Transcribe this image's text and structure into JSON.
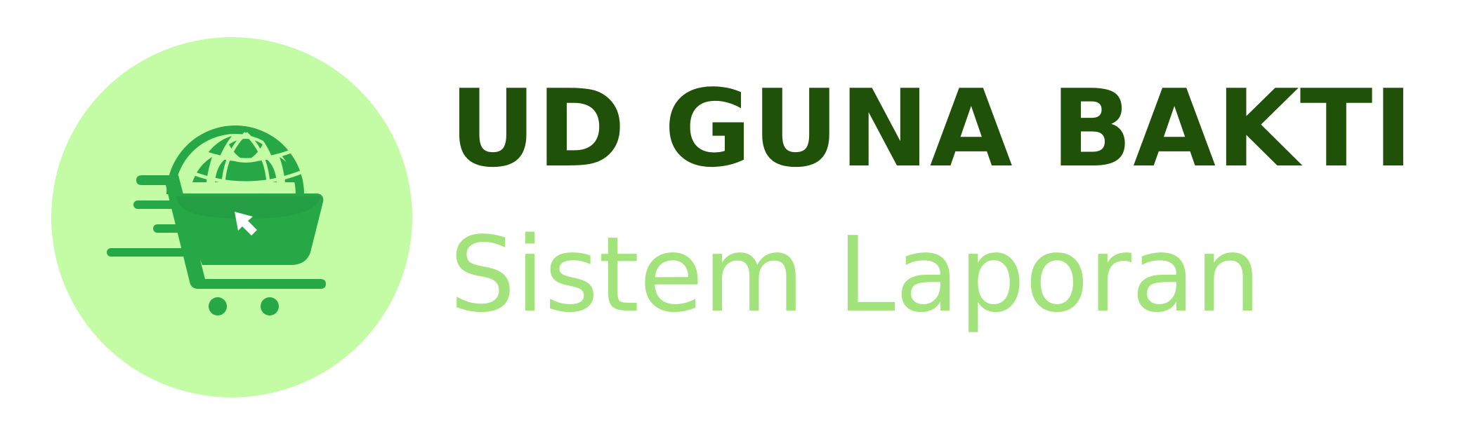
{
  "brand": {
    "title": "UD GUNA BAKTI",
    "subtitle": "Sistem Laporan",
    "logo_icon": "shopping-cart-globe-icon"
  },
  "colors": {
    "title": "#1f5208",
    "subtitle": "#a3e37c",
    "circle": "#c4fca6",
    "cart_primary": "#27a847",
    "cart_shade": "#229a40",
    "white": "#ffffff"
  }
}
